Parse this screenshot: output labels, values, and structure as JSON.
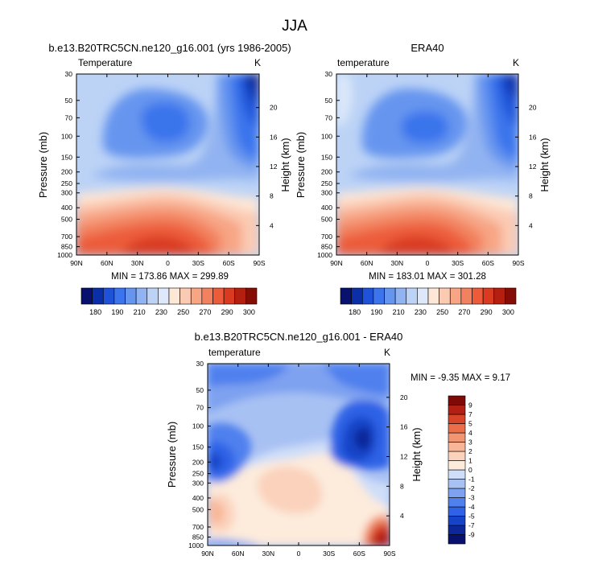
{
  "page": {
    "title": "JJA"
  },
  "colors": {
    "temp_levels": [
      "#08126e",
      "#0a2fa8",
      "#1f52d8",
      "#3b74ec",
      "#6695ef",
      "#92b3f1",
      "#bcd3f6",
      "#dde9fa",
      "#fde8d8",
      "#fbcab3",
      "#f7a585",
      "#f2825f",
      "#ec5c3a",
      "#d93a20",
      "#b51f0f",
      "#860d06"
    ],
    "diff_levels": [
      "#08126e",
      "#0b2799",
      "#1644c8",
      "#2f62e6",
      "#4f80ee",
      "#7ea1f0",
      "#a8c1f3",
      "#cfdef8",
      "#fdebdc",
      "#fbd2bc",
      "#f8b597",
      "#f29572",
      "#eb6e4b",
      "#d84428",
      "#b31f12",
      "#7f0a05"
    ]
  },
  "chart_data": [
    {
      "id": "model",
      "type": "contour",
      "title": "b.e13.B20TRC5CN.ne120_g16.001 (yrs 1986-2005)",
      "left_label": "Temperature",
      "right_label": "K",
      "xlabel": "",
      "ylabel": "Pressure (mb)",
      "y2label": "Height (km)",
      "x_ticks": [
        "90N",
        "60N",
        "30N",
        "0",
        "30S",
        "60S",
        "90S"
      ],
      "x_values": [
        90,
        60,
        30,
        0,
        -30,
        -60,
        -90
      ],
      "y_ticks": [
        "30",
        "50",
        "70",
        "100",
        "150",
        "200",
        "250",
        "300",
        "400",
        "500",
        "700",
        "850",
        "1000"
      ],
      "y_values": [
        30,
        50,
        70,
        100,
        150,
        200,
        250,
        300,
        400,
        500,
        700,
        850,
        1000
      ],
      "y2_ticks": [
        "20",
        "16",
        "12",
        "8",
        "4"
      ],
      "y2_values": [
        20,
        16,
        12,
        8,
        4
      ],
      "min_max_text": "MIN = 173.86  MAX = 299.89",
      "min": 173.86,
      "max": 299.89,
      "colorbar_ticks": [
        "180",
        "190",
        "210",
        "230",
        "250",
        "270",
        "290",
        "300"
      ]
    },
    {
      "id": "obs",
      "type": "contour",
      "title": "ERA40",
      "left_label": "temperature",
      "right_label": "K",
      "xlabel": "",
      "ylabel": "Pressure (mb)",
      "y2label": "Height (km)",
      "x_ticks": [
        "90N",
        "60N",
        "30N",
        "0",
        "30S",
        "60S",
        "90S"
      ],
      "x_values": [
        90,
        60,
        30,
        0,
        -30,
        -60,
        -90
      ],
      "y_ticks": [
        "30",
        "50",
        "70",
        "100",
        "150",
        "200",
        "250",
        "300",
        "400",
        "500",
        "700",
        "850",
        "1000"
      ],
      "y_values": [
        30,
        50,
        70,
        100,
        150,
        200,
        250,
        300,
        400,
        500,
        700,
        850,
        1000
      ],
      "y2_ticks": [
        "20",
        "16",
        "12",
        "8",
        "4"
      ],
      "y2_values": [
        20,
        16,
        12,
        8,
        4
      ],
      "min_max_text": "MIN = 183.01  MAX = 301.28",
      "min": 183.01,
      "max": 301.28,
      "colorbar_ticks": [
        "180",
        "190",
        "210",
        "230",
        "250",
        "270",
        "290",
        "300"
      ]
    },
    {
      "id": "diff",
      "type": "contour",
      "title": "b.e13.B20TRC5CN.ne120_g16.001 - ERA40",
      "left_label": "temperature",
      "right_label": "K",
      "xlabel": "",
      "ylabel": "Pressure (mb)",
      "y2label": "Height (km)",
      "x_ticks": [
        "90N",
        "60N",
        "30N",
        "0",
        "30S",
        "60S",
        "90S"
      ],
      "x_values": [
        90,
        60,
        30,
        0,
        -30,
        -60,
        -90
      ],
      "y_ticks": [
        "30",
        "50",
        "70",
        "100",
        "150",
        "200",
        "250",
        "300",
        "400",
        "500",
        "700",
        "850",
        "1000"
      ],
      "y_values": [
        30,
        50,
        70,
        100,
        150,
        200,
        250,
        300,
        400,
        500,
        700,
        850,
        1000
      ],
      "y2_ticks": [
        "20",
        "16",
        "12",
        "8",
        "4"
      ],
      "y2_values": [
        20,
        16,
        12,
        8,
        4
      ],
      "min_max_text": "MIN =  -9.35  MAX =   9.17",
      "min": -9.35,
      "max": 9.17,
      "colorbar_ticks": [
        "9",
        "7",
        "5",
        "4",
        "3",
        "2",
        "1",
        "0",
        "-1",
        "-2",
        "-3",
        "-4",
        "-5",
        "-7",
        "-9"
      ]
    }
  ]
}
